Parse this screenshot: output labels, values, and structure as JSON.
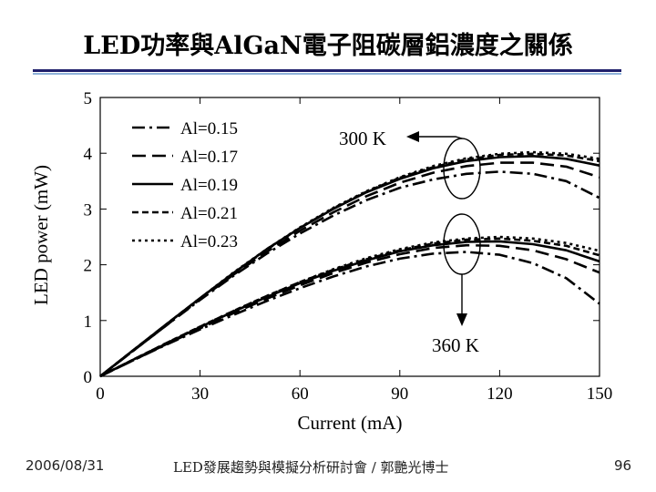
{
  "slide": {
    "title": "LED功率與AlGaN電子阻碳層鋁濃度之關係",
    "footer_date": "2006/08/31",
    "footer_event": "LED發展趨勢與模擬分析研討會 / 郭艷光博士",
    "page_number": "96"
  },
  "colors": {
    "rule_dark": "#1f1f6b",
    "rule_light": "#8fb3d9",
    "ink": "#000000"
  },
  "chart_data": {
    "type": "line",
    "title": "",
    "xlabel": "Current (mA)",
    "ylabel": "LED power (mW)",
    "xlim": [
      0,
      150
    ],
    "ylim": [
      0,
      5
    ],
    "xticks": [
      0,
      30,
      60,
      90,
      120,
      150
    ],
    "yticks": [
      0,
      1,
      2,
      3,
      4,
      5
    ],
    "x": [
      0,
      10,
      20,
      30,
      40,
      50,
      60,
      70,
      80,
      90,
      100,
      110,
      120,
      130,
      140,
      150
    ],
    "legend_position": "top-left",
    "annotations": [
      {
        "text": "300 K",
        "direction": "up"
      },
      {
        "text": "360 K",
        "direction": "down"
      }
    ],
    "series": [
      {
        "name": "Al=0.15",
        "dash": "dashdot",
        "group": "300 K",
        "values": [
          0,
          0.46,
          0.92,
          1.37,
          1.8,
          2.2,
          2.56,
          2.88,
          3.16,
          3.38,
          3.53,
          3.63,
          3.67,
          3.63,
          3.5,
          3.2
        ]
      },
      {
        "name": "Al=0.17",
        "dash": "longdash",
        "group": "300 K",
        "values": [
          0,
          0.46,
          0.92,
          1.38,
          1.82,
          2.23,
          2.61,
          2.94,
          3.23,
          3.47,
          3.65,
          3.77,
          3.83,
          3.83,
          3.76,
          3.57
        ]
      },
      {
        "name": "Al=0.19",
        "dash": "solid",
        "group": "300 K",
        "values": [
          0,
          0.47,
          0.94,
          1.4,
          1.85,
          2.28,
          2.66,
          3.0,
          3.3,
          3.54,
          3.73,
          3.86,
          3.93,
          3.95,
          3.9,
          3.78
        ]
      },
      {
        "name": "Al=0.21",
        "dash": "shortdash",
        "group": "300 K",
        "values": [
          0,
          0.47,
          0.94,
          1.4,
          1.85,
          2.27,
          2.66,
          3.01,
          3.31,
          3.56,
          3.75,
          3.89,
          3.97,
          3.99,
          3.96,
          3.86
        ]
      },
      {
        "name": "Al=0.23",
        "dash": "dotted",
        "group": "300 K",
        "values": [
          0,
          0.47,
          0.94,
          1.4,
          1.86,
          2.28,
          2.67,
          3.02,
          3.32,
          3.57,
          3.77,
          3.91,
          3.99,
          4.02,
          3.99,
          3.9
        ]
      },
      {
        "name": "",
        "dash": "dashdot",
        "group": "360 K",
        "values": [
          0,
          0.29,
          0.57,
          0.84,
          1.1,
          1.35,
          1.58,
          1.79,
          1.97,
          2.11,
          2.2,
          2.23,
          2.18,
          2.03,
          1.76,
          1.3
        ]
      },
      {
        "name": "",
        "dash": "longdash",
        "group": "360 K",
        "values": [
          0,
          0.29,
          0.58,
          0.86,
          1.13,
          1.39,
          1.63,
          1.85,
          2.04,
          2.19,
          2.3,
          2.35,
          2.34,
          2.26,
          2.1,
          1.86
        ]
      },
      {
        "name": "",
        "dash": "solid",
        "group": "360 K",
        "values": [
          0,
          0.3,
          0.59,
          0.88,
          1.16,
          1.42,
          1.67,
          1.89,
          2.08,
          2.24,
          2.35,
          2.41,
          2.42,
          2.37,
          2.26,
          2.06
        ]
      },
      {
        "name": "",
        "dash": "shortdash",
        "group": "360 K",
        "values": [
          0,
          0.3,
          0.6,
          0.89,
          1.17,
          1.44,
          1.69,
          1.91,
          2.1,
          2.26,
          2.38,
          2.45,
          2.47,
          2.43,
          2.34,
          2.17
        ]
      },
      {
        "name": "",
        "dash": "dotted",
        "group": "360 K",
        "values": [
          0,
          0.3,
          0.6,
          0.89,
          1.17,
          1.44,
          1.69,
          1.92,
          2.12,
          2.28,
          2.4,
          2.47,
          2.5,
          2.47,
          2.39,
          2.25
        ]
      }
    ]
  }
}
